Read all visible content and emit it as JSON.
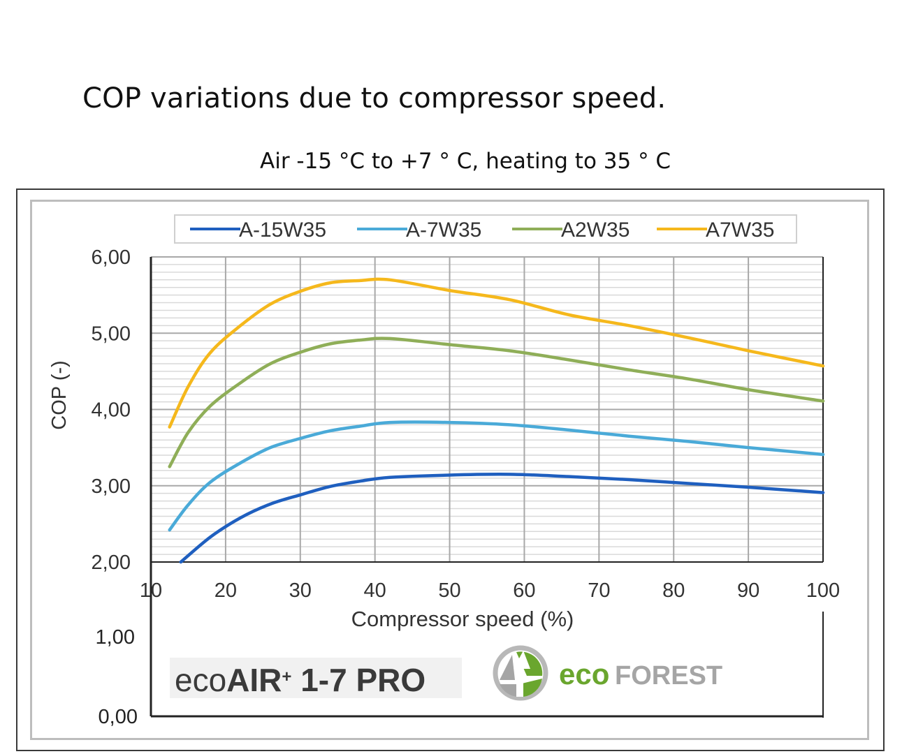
{
  "heading": "COP variations due to compressor speed.",
  "subtitle": "Air -15 °C to +7 ° C, heating to 35 ° C",
  "branding": {
    "product_prefix": "eco",
    "product_bold": "AIR",
    "product_sup": "+",
    "product_suffix": " 1-7 PRO",
    "logo_eco": "eco",
    "logo_forest": "FOREST",
    "logo_colors": {
      "green": "#6aa62e",
      "gray": "#9a9a9a"
    }
  },
  "chart_data": {
    "type": "line",
    "title": "",
    "xlabel": "Compressor speed (%)",
    "ylabel": "COP (-)",
    "xlim": [
      10,
      100
    ],
    "ylim": [
      2,
      6
    ],
    "x_ticks": [
      "10",
      "20",
      "30",
      "40",
      "50",
      "60",
      "70",
      "80",
      "90",
      "100"
    ],
    "y_ticks": [
      "6,00",
      "5,00",
      "4,00",
      "3,00",
      "2,00"
    ],
    "extra_y_labels": [
      "1,00",
      "0,00"
    ],
    "grid": true,
    "legend_position": "top",
    "series": [
      {
        "name": "A-15W35",
        "color": "#1f5fbf",
        "points": [
          [
            14,
            2.0
          ],
          [
            18,
            2.33
          ],
          [
            22,
            2.58
          ],
          [
            26,
            2.76
          ],
          [
            30,
            2.88
          ],
          [
            34,
            2.99
          ],
          [
            38,
            3.06
          ],
          [
            42,
            3.11
          ],
          [
            50,
            3.14
          ],
          [
            58,
            3.15
          ],
          [
            66,
            3.12
          ],
          [
            74,
            3.08
          ],
          [
            82,
            3.03
          ],
          [
            90,
            2.98
          ],
          [
            100,
            2.91
          ]
        ]
      },
      {
        "name": "A-7W35",
        "color": "#4aaad8",
        "points": [
          [
            12.5,
            2.42
          ],
          [
            15,
            2.75
          ],
          [
            18,
            3.05
          ],
          [
            22,
            3.3
          ],
          [
            26,
            3.5
          ],
          [
            30,
            3.62
          ],
          [
            34,
            3.72
          ],
          [
            38,
            3.78
          ],
          [
            42,
            3.83
          ],
          [
            50,
            3.83
          ],
          [
            58,
            3.8
          ],
          [
            66,
            3.73
          ],
          [
            74,
            3.65
          ],
          [
            82,
            3.58
          ],
          [
            90,
            3.5
          ],
          [
            100,
            3.41
          ]
        ]
      },
      {
        "name": "A2W35",
        "color": "#8fae58",
        "points": [
          [
            12.5,
            3.25
          ],
          [
            15,
            3.7
          ],
          [
            18,
            4.05
          ],
          [
            22,
            4.35
          ],
          [
            26,
            4.6
          ],
          [
            30,
            4.75
          ],
          [
            34,
            4.86
          ],
          [
            38,
            4.91
          ],
          [
            42,
            4.93
          ],
          [
            50,
            4.85
          ],
          [
            58,
            4.77
          ],
          [
            66,
            4.65
          ],
          [
            74,
            4.52
          ],
          [
            82,
            4.4
          ],
          [
            90,
            4.26
          ],
          [
            100,
            4.11
          ]
        ]
      },
      {
        "name": "A7W35",
        "color": "#f5b81c",
        "points": [
          [
            12.5,
            3.77
          ],
          [
            15,
            4.3
          ],
          [
            18,
            4.75
          ],
          [
            22,
            5.1
          ],
          [
            26,
            5.38
          ],
          [
            30,
            5.55
          ],
          [
            34,
            5.66
          ],
          [
            38,
            5.69
          ],
          [
            42,
            5.7
          ],
          [
            50,
            5.56
          ],
          [
            58,
            5.44
          ],
          [
            66,
            5.24
          ],
          [
            74,
            5.1
          ],
          [
            82,
            4.94
          ],
          [
            90,
            4.77
          ],
          [
            100,
            4.57
          ]
        ]
      }
    ]
  }
}
